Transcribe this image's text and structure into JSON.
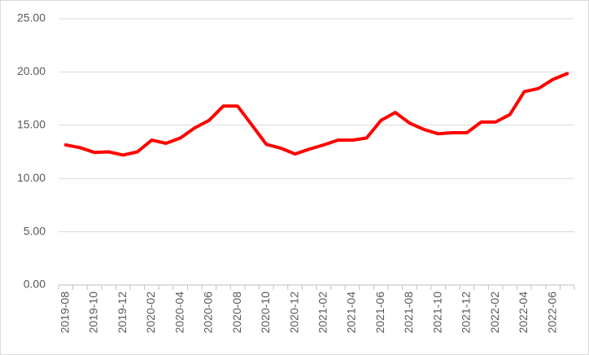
{
  "chart_data": {
    "type": "line",
    "categories": [
      "2019-08",
      null,
      "2019-10",
      null,
      "2019-12",
      null,
      "2020-02",
      null,
      "2020-04",
      null,
      "2020-06",
      null,
      "2020-08",
      null,
      "2020-10",
      null,
      "2020-12",
      null,
      "2021-02",
      null,
      "2021-04",
      null,
      "2021-06",
      null,
      "2021-08",
      null,
      "2021-10",
      null,
      "2021-12",
      null,
      "2022-02",
      null,
      "2022-04",
      null,
      "2022-06",
      null
    ],
    "values": [
      13.15,
      12.9,
      12.45,
      12.5,
      12.2,
      12.5,
      13.6,
      13.3,
      13.8,
      14.75,
      15.45,
      16.8,
      16.8,
      15.0,
      13.2,
      12.85,
      12.3,
      12.75,
      13.15,
      13.6,
      13.6,
      13.8,
      15.45,
      16.2,
      15.2,
      14.6,
      14.2,
      14.3,
      14.3,
      15.3,
      15.3,
      16.0,
      18.15,
      18.45,
      19.3,
      19.85
    ],
    "color": "#ff0000",
    "ylim": [
      0,
      25
    ],
    "yticks": [
      {
        "value": 0,
        "label": "0.00"
      },
      {
        "value": 5,
        "label": "5.00"
      },
      {
        "value": 10,
        "label": "10.00"
      },
      {
        "value": 15,
        "label": "15.00"
      },
      {
        "value": 20,
        "label": "20.00"
      },
      {
        "value": 25,
        "label": "25.00"
      }
    ],
    "grid": true
  }
}
